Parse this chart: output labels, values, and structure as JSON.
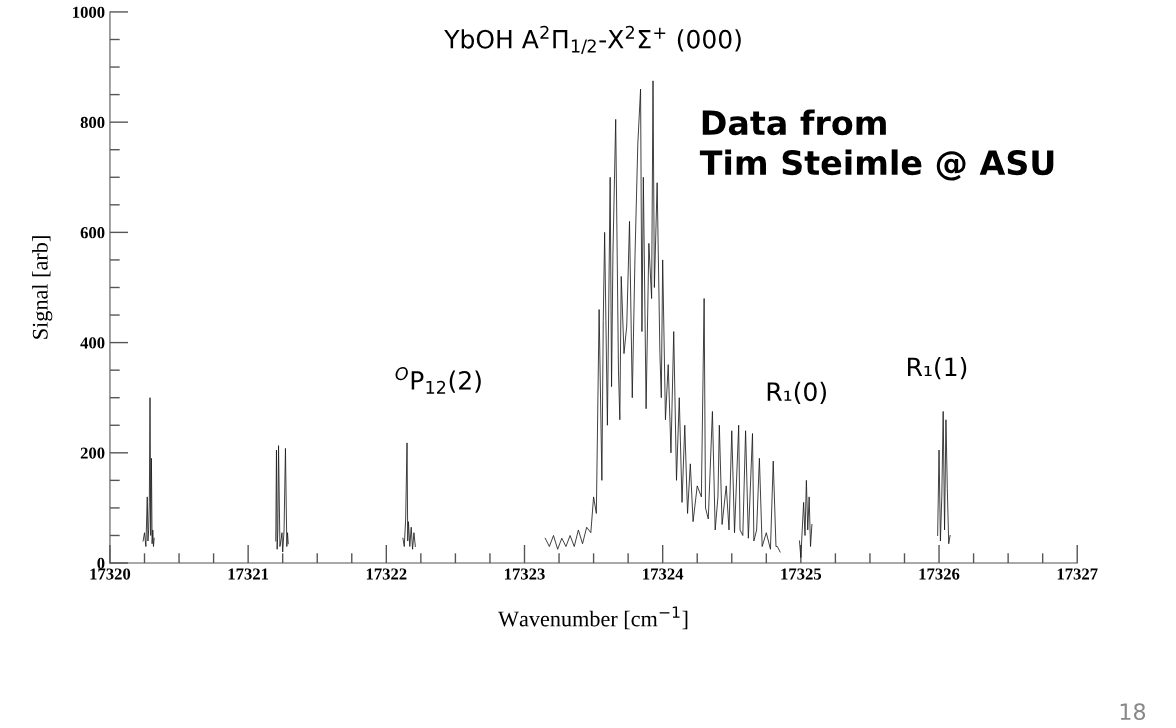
{
  "chart_data": {
    "type": "line",
    "title": "YbOH A$^{2}$Π$_{1/2}$-X$^{2}$Σ$^{+}$ (000)",
    "xlabel": "Wavenumber [cm$^{−1}$]",
    "ylabel": "Signal [arb]",
    "series": [
      {
        "color": "#1a1a1a",
        "x": [
          17320.24,
          17320.25,
          17320.26,
          17320.27,
          17320.275,
          17320.28,
          17320.285,
          17320.29,
          17320.295,
          17320.3,
          17320.305,
          17320.31,
          17320.315,
          17320.32,
          17320.33,
          17320.8,
          17321.2,
          17321.205,
          17321.21,
          17321.215,
          17321.22,
          17321.23,
          17321.24,
          17321.245,
          17321.25,
          17321.26,
          17321.27,
          17321.28,
          17321.285,
          17321.29,
          17321.3,
          17321.6,
          17322.12,
          17322.13,
          17322.14,
          17322.15,
          17322.155,
          17322.16,
          17322.17,
          17322.18,
          17322.19,
          17322.2,
          17322.21,
          17322.22,
          17322.7,
          17323.15,
          17323.18,
          17323.21,
          17323.24,
          17323.27,
          17323.3,
          17323.33,
          17323.36,
          17323.39,
          17323.42,
          17323.45,
          17323.48,
          17323.5,
          17323.52,
          17323.54,
          17323.56,
          17323.57,
          17323.58,
          17323.6,
          17323.62,
          17323.63,
          17323.64,
          17323.66,
          17323.68,
          17323.69,
          17323.7,
          17323.72,
          17323.74,
          17323.76,
          17323.78,
          17323.8,
          17323.82,
          17323.84,
          17323.85,
          17323.86,
          17323.88,
          17323.9,
          17323.92,
          17323.93,
          17323.94,
          17323.96,
          17323.98,
          17323.99,
          17324.0,
          17324.02,
          17324.04,
          17324.06,
          17324.08,
          17324.1,
          17324.12,
          17324.14,
          17324.16,
          17324.18,
          17324.2,
          17324.22,
          17324.25,
          17324.28,
          17324.3,
          17324.31,
          17324.33,
          17324.36,
          17324.38,
          17324.4,
          17324.41,
          17324.43,
          17324.46,
          17324.48,
          17324.5,
          17324.52,
          17324.55,
          17324.56,
          17324.58,
          17324.6,
          17324.62,
          17324.65,
          17324.66,
          17324.68,
          17324.7,
          17324.72,
          17324.75,
          17324.78,
          17324.8,
          17324.82,
          17324.83,
          17324.85,
          17324.9,
          17324.98,
          17324.99,
          17325.0,
          17325.02,
          17325.03,
          17325.04,
          17325.05,
          17325.06,
          17325.07,
          17325.08,
          17325.5,
          17325.98,
          17325.99,
          17326.0,
          17326.01,
          17326.02,
          17326.03,
          17326.04,
          17326.05,
          17326.06,
          17326.07,
          17326.08
        ],
        "values": [
          40,
          55,
          30,
          120,
          40,
          60,
          110,
          300,
          50,
          190,
          35,
          60,
          30,
          45,
          null,
          null,
          40,
          205,
          25,
          60,
          213,
          30,
          45,
          55,
          20,
          60,
          208,
          30,
          55,
          35,
          null,
          null,
          45,
          30,
          80,
          218,
          40,
          75,
          30,
          65,
          25,
          55,
          30,
          null,
          null,
          45,
          30,
          50,
          25,
          45,
          30,
          50,
          30,
          60,
          35,
          65,
          55,
          120,
          90,
          460,
          150,
          440,
          600,
          250,
          700,
          320,
          560,
          805,
          350,
          260,
          520,
          380,
          430,
          620,
          300,
          560,
          760,
          860,
          420,
          700,
          280,
          580,
          480,
          875,
          500,
          690,
          380,
          300,
          550,
          260,
          360,
          200,
          420,
          150,
          300,
          110,
          250,
          90,
          180,
          75,
          140,
          120,
          480,
          100,
          80,
          275,
          60,
          120,
          250,
          70,
          140,
          60,
          240,
          55,
          250,
          60,
          50,
          240,
          45,
          235,
          40,
          60,
          190,
          30,
          55,
          25,
          185,
          30,
          30,
          20,
          null,
          null,
          40,
          10,
          110,
          50,
          150,
          60,
          120,
          30,
          70,
          null,
          null,
          50,
          205,
          40,
          120,
          275,
          60,
          260,
          135,
          35,
          50
        ]
      }
    ],
    "xlim": [
      17320,
      17327
    ],
    "xticks": [
      17320,
      {
        "value": 17320.25,
        "label": null
      },
      {
        "value": 17320.5,
        "label": null
      },
      {
        "value": 17320.75,
        "label": null
      },
      17321,
      {
        "value": 17321.25,
        "label": null
      },
      {
        "value": 17321.5,
        "label": null
      },
      {
        "value": 17321.75,
        "label": null
      },
      17322,
      {
        "value": 17322.25,
        "label": null
      },
      {
        "value": 17322.5,
        "label": null
      },
      {
        "value": 17322.75,
        "label": null
      },
      17323,
      {
        "value": 17323.25,
        "label": null
      },
      {
        "value": 17323.5,
        "label": null
      },
      {
        "value": 17323.75,
        "label": null
      },
      17324,
      {
        "value": 17324.25,
        "label": null
      },
      {
        "value": 17324.5,
        "label": null
      },
      {
        "value": 17324.75,
        "label": null
      },
      17325,
      {
        "value": 17325.25,
        "label": null
      },
      {
        "value": 17325.5,
        "label": null
      },
      {
        "value": 17325.75,
        "label": null
      },
      17326,
      {
        "value": 17326.25,
        "label": null
      },
      {
        "value": 17326.5,
        "label": null
      },
      {
        "value": 17326.75,
        "label": null
      },
      17327
    ],
    "ylim": [
      0,
      1000
    ],
    "yticks": [
      0,
      {
        "value": 50,
        "label": null
      },
      {
        "value": 100,
        "label": null
      },
      {
        "value": 150,
        "label": null
      },
      200,
      {
        "value": 250,
        "label": null
      },
      {
        "value": 300,
        "label": null
      },
      {
        "value": 350,
        "label": null
      },
      400,
      {
        "value": 450,
        "label": null
      },
      {
        "value": 500,
        "label": null
      },
      {
        "value": 550,
        "label": null
      },
      600,
      {
        "value": 650,
        "label": null
      },
      {
        "value": 700,
        "label": null
      },
      {
        "value": 750,
        "label": null
      },
      800,
      {
        "value": 850,
        "label": null
      },
      {
        "value": 900,
        "label": null
      },
      {
        "value": 950,
        "label": null
      },
      1000
    ],
    "grid": false,
    "legend": false,
    "marker": "none",
    "line_style": "solid",
    "annotations": [
      "$^{O}$P$_{12}$(2)",
      "R₁(0)",
      "R₁(1)",
      "Data from\nTim Steimle @ ASU",
      "18"
    ]
  }
}
